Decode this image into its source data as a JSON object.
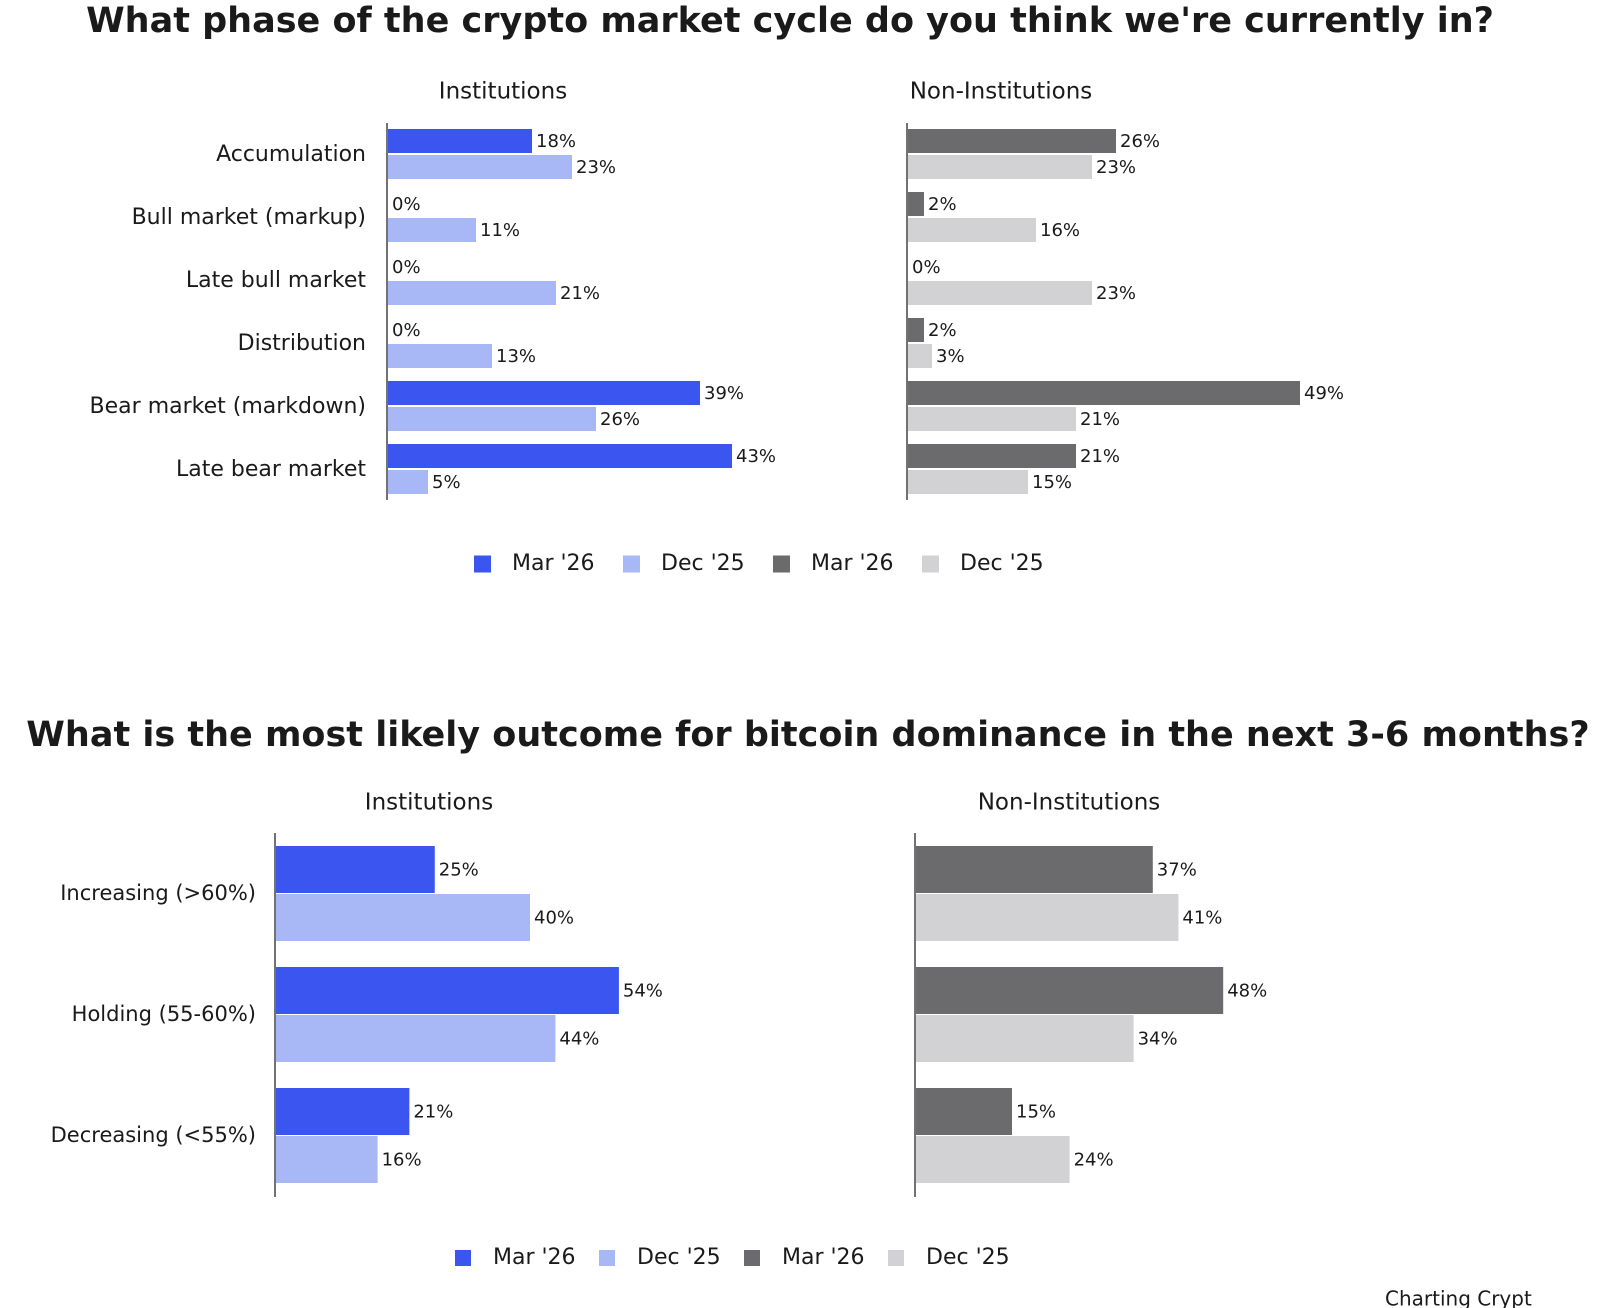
{
  "chart_data": [
    {
      "type": "bar",
      "orientation": "horizontal",
      "title": "What phase of the crypto market cycle do you think we're currently in?",
      "subtitle": "Institutions",
      "categories": [
        "Accumulation",
        "Bull market (markup)",
        "Late bull market",
        "Distribution",
        "Bear market (markdown)",
        "Late bear market"
      ],
      "series": [
        {
          "name": "Mar '26",
          "color": "#3a55f0",
          "values": [
            18,
            0,
            0,
            0,
            39,
            43
          ],
          "value_labels": [
            "18%",
            "0%",
            "0%",
            "0%",
            "39%",
            "43%"
          ]
        },
        {
          "name": "Dec '25",
          "color": "#a8b8f6",
          "values": [
            23,
            11,
            21,
            13,
            26,
            5
          ],
          "value_labels": [
            "23%",
            "11%",
            "21%",
            "13%",
            "26%",
            "5%"
          ]
        }
      ]
    },
    {
      "type": "bar",
      "orientation": "horizontal",
      "subtitle": "Non-Institutions",
      "series": [
        {
          "name": "Mar '26",
          "color": "#6b6b6e",
          "values": [
            26,
            2,
            0,
            2,
            49,
            21
          ],
          "value_labels": [
            "26%",
            "2%",
            "0%",
            "2%",
            "49%",
            "21%"
          ]
        },
        {
          "name": "Dec '25",
          "color": "#d2d2d4",
          "values": [
            23,
            16,
            23,
            3,
            21,
            15
          ],
          "value_labels": [
            "23%",
            "16%",
            "23%",
            "3%",
            "21%",
            "15%"
          ]
        }
      ]
    },
    {
      "type": "bar",
      "orientation": "horizontal",
      "title": "What is the most likely outcome for bitcoin dominance in the next 3-6 months?",
      "subtitle": "Institutions",
      "categories": [
        "Increasing (>60%)",
        "Holding (55-60%)",
        "Decreasing (<55%)"
      ],
      "series": [
        {
          "name": "Mar '26",
          "color": "#3a55f0",
          "values": [
            25,
            54,
            21
          ],
          "value_labels": [
            "25%",
            "54%",
            "21%"
          ]
        },
        {
          "name": "Dec '25",
          "color": "#a8b8f6",
          "values": [
            40,
            44,
            16
          ],
          "value_labels": [
            "40%",
            "44%",
            "16%"
          ]
        }
      ]
    },
    {
      "type": "bar",
      "orientation": "horizontal",
      "subtitle": "Non-Institutions",
      "series": [
        {
          "name": "Mar '26",
          "color": "#6b6b6e",
          "values": [
            37,
            48,
            15
          ],
          "value_labels": [
            "37%",
            "48%",
            "15%"
          ]
        },
        {
          "name": "Dec '25",
          "color": "#d2d2d4",
          "values": [
            41,
            34,
            24
          ],
          "value_labels": [
            "41%",
            "34%",
            "24%"
          ]
        }
      ]
    }
  ],
  "footer": "Charting Crypt"
}
